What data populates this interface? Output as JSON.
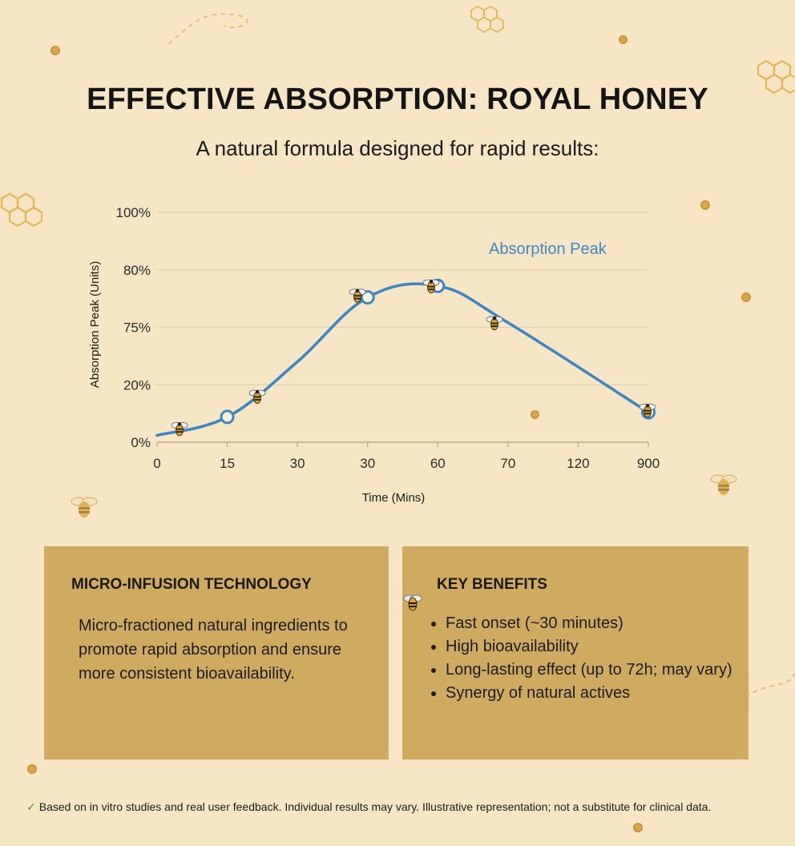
{
  "header": {
    "title": "EFFECTIVE ABSORPTION: ROYAL HONEY",
    "subtitle": "A natural formula designed for rapid results:"
  },
  "chart_data": {
    "type": "line",
    "title": "",
    "xlabel": "Time (Mins)",
    "ylabel": "Absorption Peak (Units)",
    "x_tick_labels": [
      "0",
      "15",
      "30",
      "30",
      "60",
      "70",
      "120",
      "900"
    ],
    "y_tick_labels": [
      "0%",
      "20%",
      "75%",
      "80%",
      "100%"
    ],
    "grid": true,
    "series": [
      {
        "name": "Absorption Peak",
        "color": "#3f87c1",
        "points": [
          {
            "x": "0",
            "y": 3
          },
          {
            "x": "15",
            "y": 11
          },
          {
            "x": "30",
            "y": 35
          },
          {
            "x": "30",
            "y": 63
          },
          {
            "x": "60",
            "y": 68
          },
          {
            "x": "70",
            "y": 52
          },
          {
            "x": "900",
            "y": 13
          }
        ],
        "bee_markers": [
          {
            "x": "0",
            "y": 6
          },
          {
            "x": "15",
            "y": 20
          },
          {
            "x": "30",
            "y": 64
          },
          {
            "x": "60",
            "y": 68
          },
          {
            "x": "70",
            "y": 52
          },
          {
            "x": "900",
            "y": 14
          }
        ],
        "ring_markers": [
          {
            "x": "15",
            "y": 11
          },
          {
            "x": "30",
            "y": 63
          },
          {
            "x": "60",
            "y": 68
          },
          {
            "x": "900",
            "y": 13
          }
        ]
      }
    ],
    "annotation": "Absorption Peak"
  },
  "panels": {
    "left": {
      "heading": "MICRO-INFUSION TECHNOLOGY",
      "body": "Micro-fractioned natural ingredients to promote rapid absorption and ensure more consistent bioavailability."
    },
    "right": {
      "heading": "KEY BENEFITS",
      "items": [
        "Fast onset (~30 minutes)",
        "High bioavailability",
        "Long-lasting effect (up to 72h; may vary)",
        "Synergy of natural actives"
      ]
    }
  },
  "footer": {
    "check": "✓",
    "text": "Based on in vitro studies and real user feedback. Individual results may vary. Illustrative representation; not a substitute for clinical data."
  },
  "colors": {
    "background": "#f6e6c6",
    "panel": "#cfab62",
    "line": "#3f87c1",
    "honey": "#d7a948"
  },
  "icons": [
    "honeycomb-icon",
    "bee-icon",
    "honey-drop-icon",
    "check-icon"
  ]
}
